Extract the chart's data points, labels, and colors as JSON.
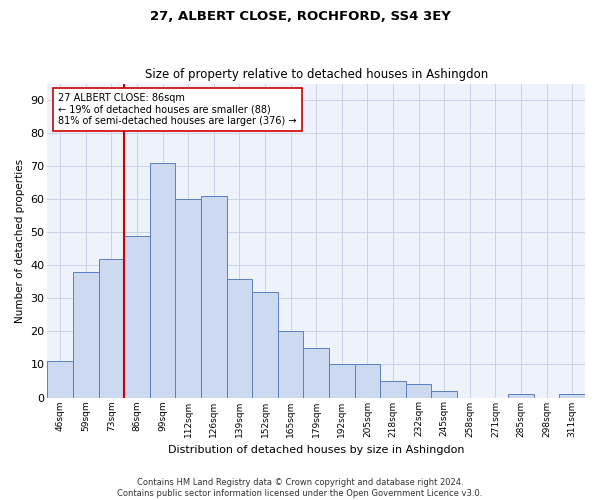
{
  "title": "27, ALBERT CLOSE, ROCHFORD, SS4 3EY",
  "subtitle": "Size of property relative to detached houses in Ashingdon",
  "xlabel": "Distribution of detached houses by size in Ashingdon",
  "ylabel": "Number of detached properties",
  "bar_color": "#ccd9f0",
  "bar_edge_color": "#5a7fc0",
  "categories": [
    "46sqm",
    "59sqm",
    "73sqm",
    "86sqm",
    "99sqm",
    "112sqm",
    "126sqm",
    "139sqm",
    "152sqm",
    "165sqm",
    "179sqm",
    "192sqm",
    "205sqm",
    "218sqm",
    "232sqm",
    "245sqm",
    "258sqm",
    "271sqm",
    "285sqm",
    "298sqm",
    "311sqm"
  ],
  "values": [
    11,
    38,
    42,
    49,
    71,
    60,
    61,
    36,
    32,
    20,
    15,
    10,
    10,
    5,
    4,
    2,
    0,
    0,
    1,
    0,
    1
  ],
  "ylim": [
    0,
    95
  ],
  "yticks": [
    0,
    10,
    20,
    30,
    40,
    50,
    60,
    70,
    80,
    90
  ],
  "vline_index": 3,
  "vline_color": "#cc0000",
  "annotation_text": "27 ALBERT CLOSE: 86sqm\n← 19% of detached houses are smaller (88)\n81% of semi-detached houses are larger (376) →",
  "annotation_box_color": "#cc0000",
  "footer_line1": "Contains HM Land Registry data © Crown copyright and database right 2024.",
  "footer_line2": "Contains public sector information licensed under the Open Government Licence v3.0.",
  "bg_color": "#eef2fa",
  "grid_color": "#c8d4e8"
}
